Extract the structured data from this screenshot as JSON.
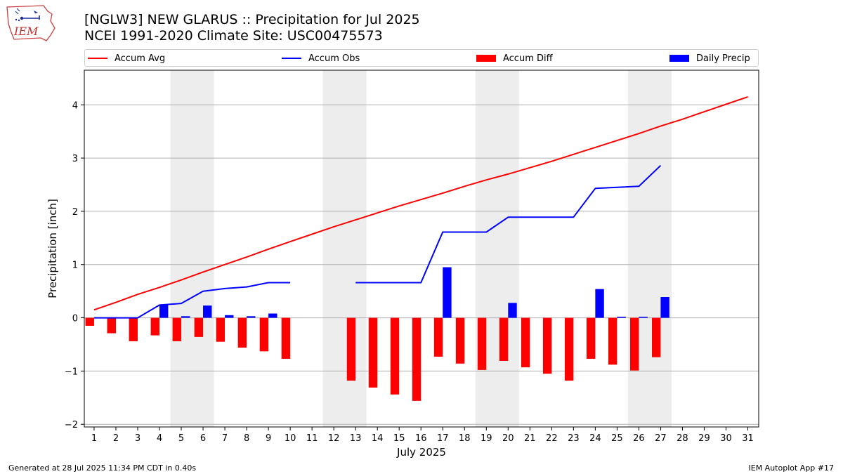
{
  "header": {
    "title_line1": "[NGLW3] NEW GLARUS :: Precipitation for Jul 2025",
    "title_line2": "NCEI 1991-2020 Climate Site: USC00475573"
  },
  "logo": {
    "text": "IEM"
  },
  "legend": [
    {
      "label": "Accum Avg",
      "color": "#ff0000",
      "kind": "line"
    },
    {
      "label": "Accum Obs",
      "color": "#0000ff",
      "kind": "line"
    },
    {
      "label": "Accum Diff",
      "color": "#ff0000",
      "kind": "bar"
    },
    {
      "label": "Daily Precip",
      "color": "#0000ff",
      "kind": "bar"
    }
  ],
  "footer": {
    "left": "Generated at 28 Jul 2025 11:34 PM CDT in 0.40s",
    "right": "IEM Autoplot App #17"
  },
  "chart_data": {
    "type": "bar",
    "xlabel": "July 2025",
    "ylabel": "Precipitation [inch]",
    "xlim": [
      0.55,
      31.5
    ],
    "ylim": [
      -2.05,
      4.65
    ],
    "yticks": [
      -2,
      -1,
      0,
      1,
      2,
      3,
      4
    ],
    "xticks": [
      1,
      2,
      3,
      4,
      5,
      6,
      7,
      8,
      9,
      10,
      11,
      12,
      13,
      14,
      15,
      16,
      17,
      18,
      19,
      20,
      21,
      22,
      23,
      24,
      25,
      26,
      27,
      28,
      29,
      30,
      31
    ],
    "grid": "y",
    "legend_position": "top",
    "shaded_weekends": [
      [
        4.5,
        6.5
      ],
      [
        11.5,
        13.5
      ],
      [
        18.5,
        20.5
      ],
      [
        25.5,
        27.5
      ]
    ],
    "days": [
      1,
      2,
      3,
      4,
      5,
      6,
      7,
      8,
      9,
      10,
      11,
      12,
      13,
      14,
      15,
      16,
      17,
      18,
      19,
      20,
      21,
      22,
      23,
      24,
      25,
      26,
      27,
      28,
      29,
      30,
      31
    ],
    "series": [
      {
        "name": "Accum Avg",
        "type": "line",
        "color": "#ff0000",
        "values": [
          0.15,
          0.29,
          0.44,
          0.57,
          0.71,
          0.86,
          1.0,
          1.14,
          1.29,
          1.43,
          1.57,
          1.71,
          1.84,
          1.97,
          2.1,
          2.22,
          2.34,
          2.47,
          2.59,
          2.7,
          2.82,
          2.94,
          3.07,
          3.2,
          3.33,
          3.46,
          3.6,
          3.73,
          3.87,
          4.01,
          4.15
        ]
      },
      {
        "name": "Accum Obs",
        "type": "line",
        "color": "#0000ff",
        "values": [
          0.0,
          0.0,
          0.0,
          0.24,
          0.27,
          0.5,
          0.55,
          0.58,
          0.66,
          0.66,
          null,
          null,
          0.66,
          0.66,
          0.66,
          0.66,
          1.61,
          1.61,
          1.61,
          1.89,
          1.89,
          1.89,
          1.89,
          2.43,
          2.45,
          2.47,
          2.86,
          null,
          null,
          null,
          null
        ]
      },
      {
        "name": "Accum Diff",
        "type": "bar",
        "color": "#ff0000",
        "values": [
          -0.15,
          -0.29,
          -0.44,
          -0.33,
          -0.44,
          -0.36,
          -0.45,
          -0.56,
          -0.63,
          -0.77,
          null,
          null,
          -1.18,
          -1.31,
          -1.44,
          -1.56,
          -0.73,
          -0.86,
          -0.98,
          -0.81,
          -0.93,
          -1.05,
          -1.18,
          -0.77,
          -0.88,
          -0.99,
          -0.74,
          null,
          null,
          null,
          null
        ]
      },
      {
        "name": "Daily Precip",
        "type": "bar",
        "color": "#0000ff",
        "values": [
          0.0,
          0.0,
          0.0,
          0.24,
          0.03,
          0.23,
          0.05,
          0.03,
          0.08,
          0.0,
          null,
          null,
          0.0,
          0.0,
          0.0,
          0.0,
          0.95,
          0.0,
          0.0,
          0.28,
          0.0,
          0.0,
          0.0,
          0.54,
          0.02,
          0.02,
          0.39,
          null,
          null,
          null,
          null
        ]
      }
    ]
  }
}
